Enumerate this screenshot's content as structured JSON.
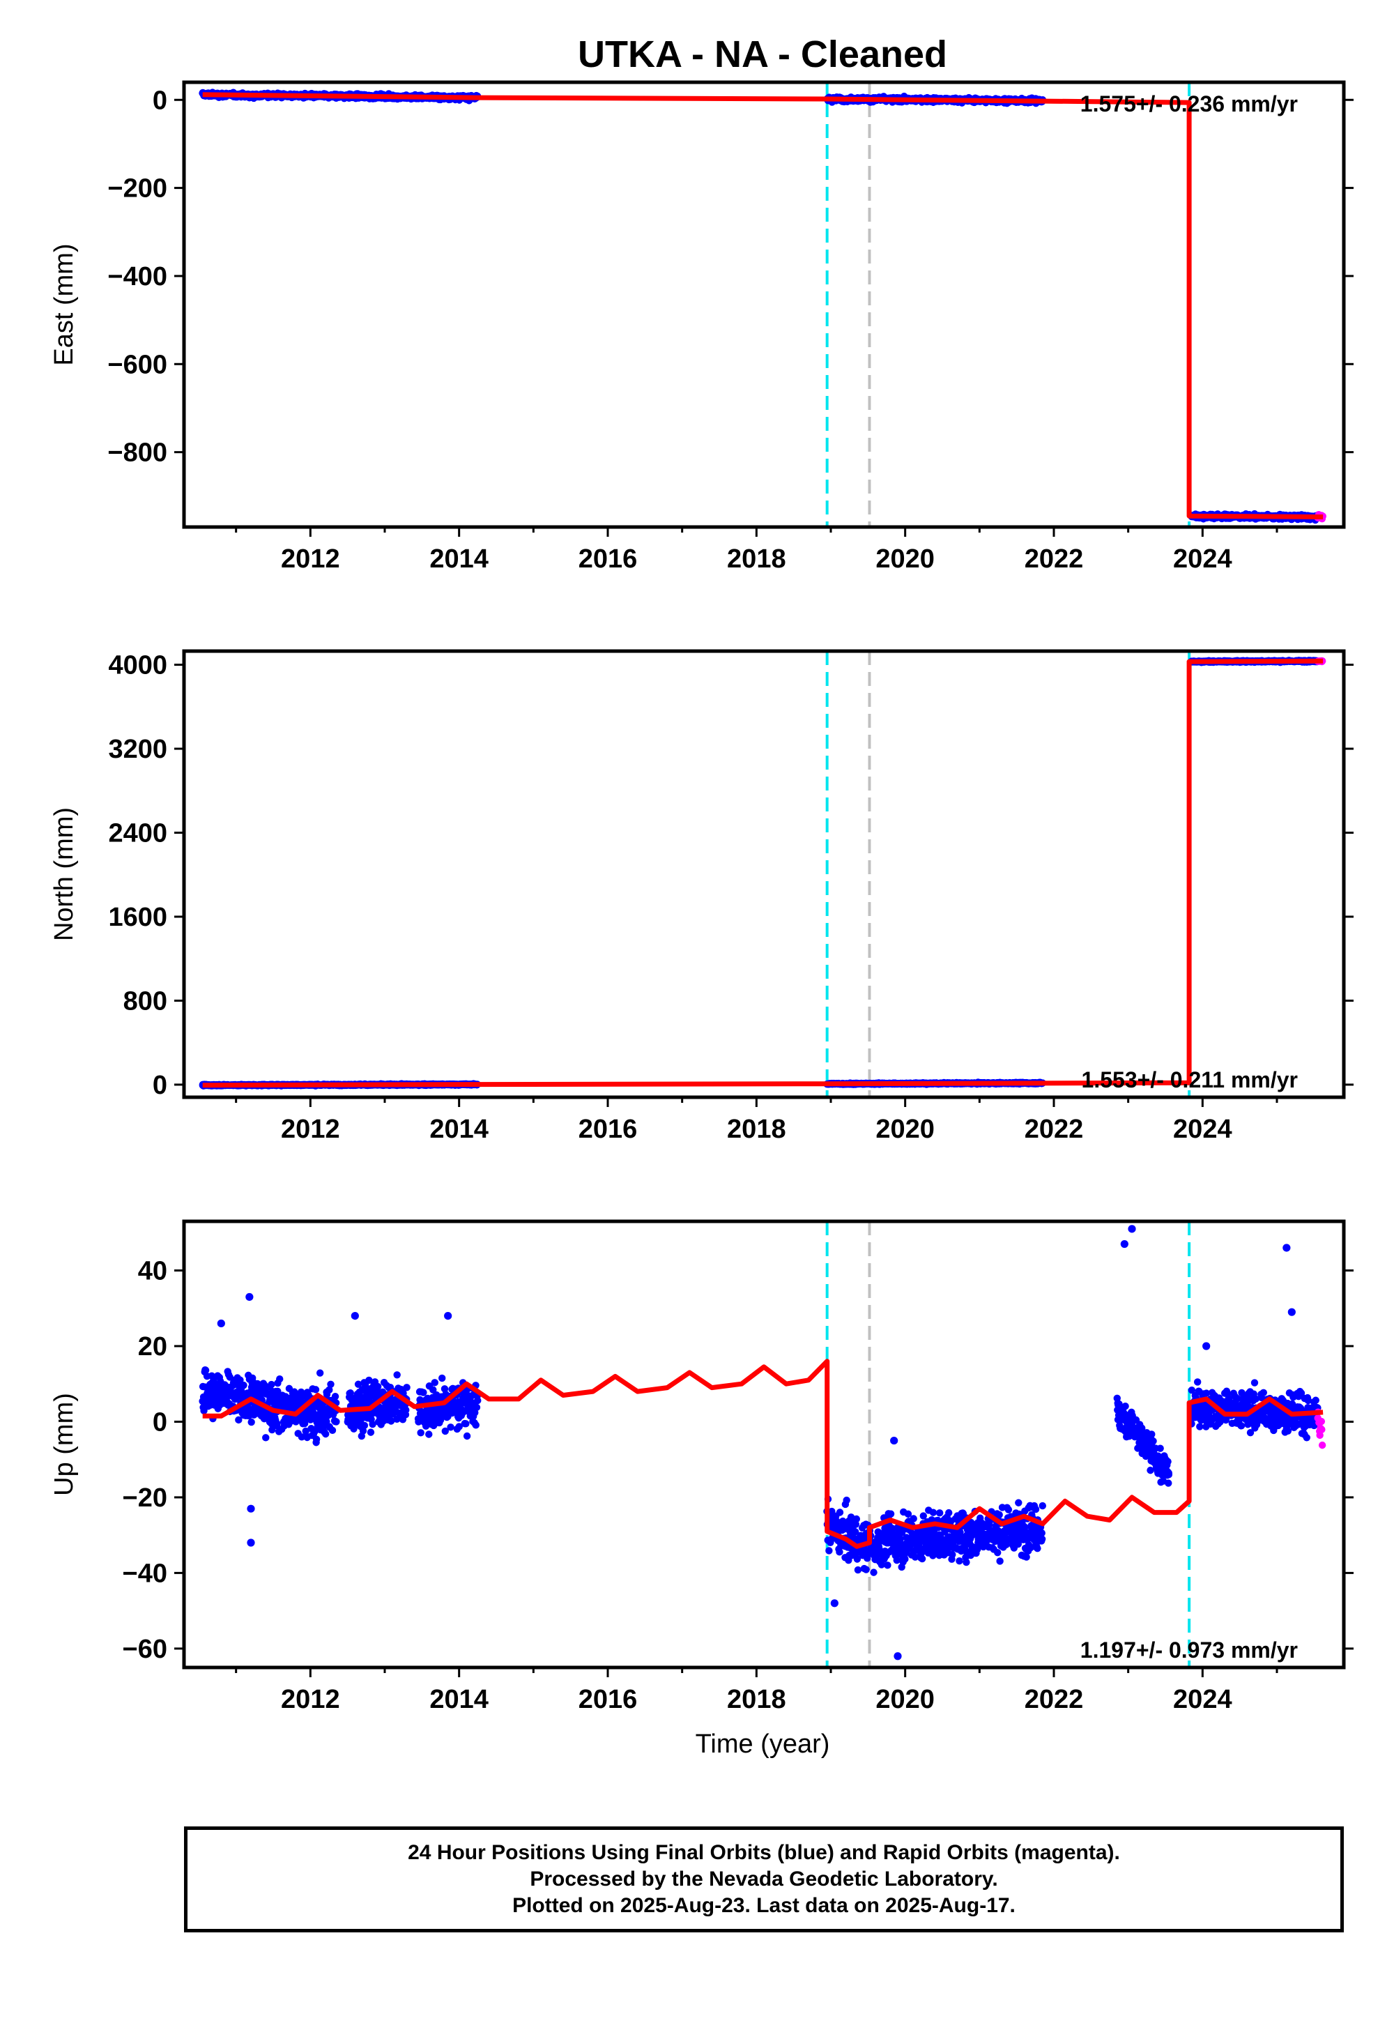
{
  "title": "UTKA  - NA - Cleaned",
  "xlabel": "Time (year)",
  "caption": {
    "line1": "24 Hour Positions Using Final Orbits (blue) and Rapid Orbits (magenta).",
    "line2": "Processed by the Nevada Geodetic Laboratory.",
    "line3": "Plotted on 2025-Aug-23. Last data on 2025-Aug-17."
  },
  "colors": {
    "final_orbits": "#0000ff",
    "rapid_orbits": "#ff00ff",
    "model": "#ff0000",
    "equipment_change": "#00e5ee",
    "other_event": "#c0c0c0"
  },
  "chart_data": [
    {
      "type": "scatter",
      "component": "east",
      "ylabel": "East (mm)",
      "xlim": [
        2010.3,
        2025.9
      ],
      "ylim": [
        -970,
        40
      ],
      "xticks": [
        2012,
        2014,
        2016,
        2018,
        2020,
        2022,
        2024
      ],
      "yticks": [
        0,
        -200,
        -400,
        -600,
        -800
      ],
      "rate_label": "1.575+/- 0.236 mm/yr",
      "vlines": [
        {
          "x": 2018.95,
          "style": "cyan-dashed"
        },
        {
          "x": 2019.52,
          "style": "gray-dashed"
        },
        {
          "x": 2023.82,
          "style": "cyan-dashed"
        }
      ],
      "data_segments": [
        {
          "x_start": 2010.55,
          "x_end": 2014.25,
          "y_start": 12,
          "y_end": 5,
          "noise": 4
        },
        {
          "x_start": 2018.95,
          "x_end": 2021.85,
          "y_start": 2,
          "y_end": -2,
          "noise": 4
        },
        {
          "x_start": 2023.85,
          "x_end": 2025.55,
          "y_start": -945,
          "y_end": -948,
          "noise": 4
        },
        {
          "x_start": 2025.55,
          "x_end": 2025.62,
          "y_start": -947,
          "y_end": -947,
          "noise": 3,
          "rapid": true
        }
      ],
      "model": [
        [
          2010.55,
          12
        ],
        [
          2014.25,
          5
        ],
        [
          2018.95,
          2
        ],
        [
          2023.82,
          -6
        ],
        [
          2023.82,
          -945
        ],
        [
          2025.62,
          -947
        ]
      ]
    },
    {
      "type": "scatter",
      "component": "north",
      "ylabel": "North (mm)",
      "xlim": [
        2010.3,
        2025.9
      ],
      "ylim": [
        -120,
        4130
      ],
      "xticks": [
        2012,
        2014,
        2016,
        2018,
        2020,
        2022,
        2024
      ],
      "yticks": [
        4000,
        3200,
        2400,
        1600,
        800,
        0
      ],
      "rate_label": "1.553+/- 0.211 mm/yr",
      "vlines": [
        {
          "x": 2018.95,
          "style": "cyan-dashed"
        },
        {
          "x": 2019.52,
          "style": "gray-dashed"
        },
        {
          "x": 2023.82,
          "style": "cyan-dashed"
        }
      ],
      "data_segments": [
        {
          "x_start": 2010.55,
          "x_end": 2014.25,
          "y_start": -5,
          "y_end": 2,
          "noise": 5
        },
        {
          "x_start": 2018.95,
          "x_end": 2021.85,
          "y_start": 8,
          "y_end": 15,
          "noise": 5
        },
        {
          "x_start": 2023.85,
          "x_end": 2025.55,
          "y_start": 4030,
          "y_end": 4035,
          "noise": 6
        },
        {
          "x_start": 2025.55,
          "x_end": 2025.62,
          "y_start": 4035,
          "y_end": 4035,
          "noise": 4,
          "rapid": true
        }
      ],
      "model": [
        [
          2010.55,
          -5
        ],
        [
          2014.25,
          2
        ],
        [
          2018.95,
          8
        ],
        [
          2023.82,
          18
        ],
        [
          2023.82,
          4030
        ],
        [
          2025.62,
          4036
        ]
      ]
    },
    {
      "type": "scatter",
      "component": "up",
      "ylabel": "Up (mm)",
      "xlim": [
        2010.3,
        2025.9
      ],
      "ylim": [
        -65,
        53
      ],
      "xticks": [
        2012,
        2014,
        2016,
        2018,
        2020,
        2022,
        2024
      ],
      "yticks": [
        40,
        20,
        0,
        -20,
        -40,
        -60
      ],
      "rate_label": "1.197+/- 0.973 mm/yr",
      "vlines": [
        {
          "x": 2018.95,
          "style": "cyan-dashed"
        },
        {
          "x": 2019.52,
          "style": "gray-dashed"
        },
        {
          "x": 2023.82,
          "style": "cyan-dashed"
        }
      ],
      "data_segments": [
        {
          "x_start": 2010.55,
          "x_end": 2011.9,
          "y_start": 8,
          "y_end": 3,
          "noise": 5
        },
        {
          "x_start": 2011.9,
          "x_end": 2012.35,
          "y_start": 3,
          "y_end": 2,
          "noise": 6
        },
        {
          "x_start": 2012.5,
          "x_end": 2013.3,
          "y_start": 4,
          "y_end": 5,
          "noise": 5
        },
        {
          "x_start": 2013.45,
          "x_end": 2014.25,
          "y_start": 3,
          "y_end": 5,
          "noise": 5
        },
        {
          "x_start": 2018.95,
          "x_end": 2019.6,
          "y_start": -28,
          "y_end": -34,
          "noise": 5
        },
        {
          "x_start": 2019.6,
          "x_end": 2021.85,
          "y_start": -32,
          "y_end": -28,
          "noise": 5
        },
        {
          "x_start": 2022.85,
          "x_end": 2023.55,
          "y_start": 3,
          "y_end": -14,
          "noise": 4
        },
        {
          "x_start": 2023.85,
          "x_end": 2025.55,
          "y_start": 4,
          "y_end": 2,
          "noise": 4
        },
        {
          "x_start": 2025.55,
          "x_end": 2025.62,
          "y_start": 0,
          "y_end": -4,
          "noise": 4,
          "rapid": true
        }
      ],
      "outliers": [
        [
          2011.18,
          33
        ],
        [
          2011.2,
          -23
        ],
        [
          2011.2,
          -32
        ],
        [
          2010.8,
          26
        ],
        [
          2012.6,
          28
        ],
        [
          2013.85,
          28
        ],
        [
          2022.95,
          47
        ],
        [
          2023.05,
          51
        ],
        [
          2025.13,
          46
        ],
        [
          2025.2,
          29
        ],
        [
          2019.9,
          -62
        ],
        [
          2019.05,
          -48
        ],
        [
          2019.85,
          -5
        ],
        [
          2024.05,
          20
        ]
      ],
      "model": [
        [
          2010.55,
          1.5
        ],
        [
          2010.8,
          1.5
        ],
        [
          2011.2,
          6
        ],
        [
          2011.5,
          3
        ],
        [
          2011.8,
          2
        ],
        [
          2012.1,
          7
        ],
        [
          2012.4,
          3
        ],
        [
          2012.8,
          3.5
        ],
        [
          2013.1,
          8
        ],
        [
          2013.4,
          4
        ],
        [
          2013.8,
          5
        ],
        [
          2014.1,
          10
        ],
        [
          2014.4,
          6
        ],
        [
          2014.8,
          6
        ],
        [
          2015.1,
          11
        ],
        [
          2015.4,
          7
        ],
        [
          2015.8,
          8
        ],
        [
          2016.1,
          12
        ],
        [
          2016.4,
          8
        ],
        [
          2016.8,
          9
        ],
        [
          2017.1,
          13
        ],
        [
          2017.4,
          9
        ],
        [
          2017.8,
          10
        ],
        [
          2018.1,
          14.5
        ],
        [
          2018.4,
          10
        ],
        [
          2018.7,
          11
        ],
        [
          2018.95,
          16
        ],
        [
          2018.95,
          -29
        ],
        [
          2019.2,
          -31
        ],
        [
          2019.35,
          -33
        ],
        [
          2019.52,
          -32
        ],
        [
          2019.52,
          -28
        ],
        [
          2019.8,
          -26
        ],
        [
          2020.1,
          -28
        ],
        [
          2020.4,
          -27
        ],
        [
          2020.7,
          -28
        ],
        [
          2021.0,
          -23
        ],
        [
          2021.3,
          -27
        ],
        [
          2021.6,
          -25
        ],
        [
          2021.85,
          -27
        ],
        [
          2022.15,
          -21
        ],
        [
          2022.45,
          -25
        ],
        [
          2022.75,
          -26
        ],
        [
          2023.05,
          -20
        ],
        [
          2023.35,
          -24
        ],
        [
          2023.65,
          -24
        ],
        [
          2023.82,
          -21
        ],
        [
          2023.82,
          5
        ],
        [
          2024.05,
          6
        ],
        [
          2024.3,
          2
        ],
        [
          2024.6,
          2
        ],
        [
          2024.9,
          6
        ],
        [
          2025.2,
          2
        ],
        [
          2025.62,
          2.5
        ]
      ]
    }
  ]
}
